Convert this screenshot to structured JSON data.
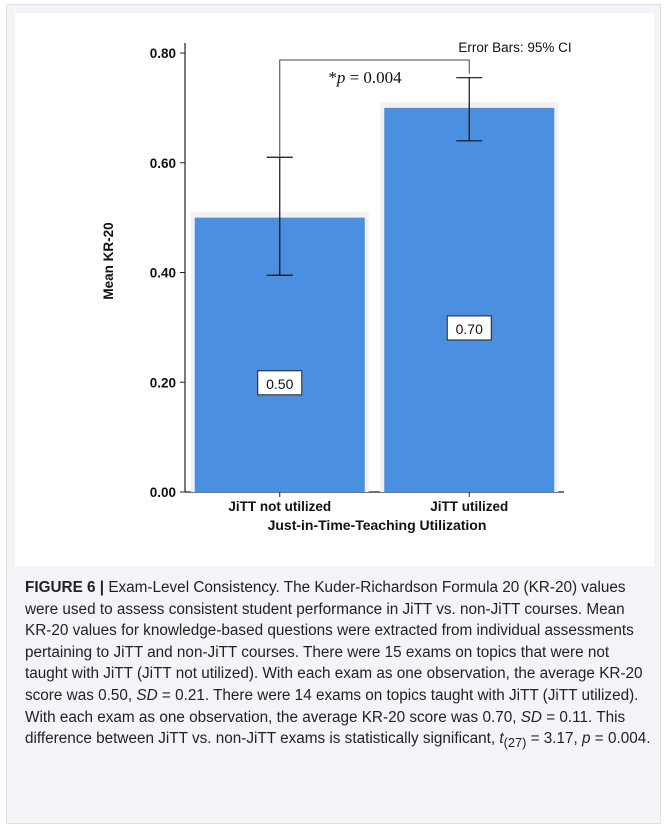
{
  "chart_data": {
    "type": "bar",
    "categories": [
      "JiTT not utilized",
      "JiTT utilized"
    ],
    "values": [
      0.5,
      0.7
    ],
    "value_labels": [
      "0.50",
      "0.70"
    ],
    "error_bars": [
      {
        "lower": 0.395,
        "upper": 0.61
      },
      {
        "lower": 0.64,
        "upper": 0.755
      }
    ],
    "error_bar_label": "Error Bars: 95% CI",
    "significance_label": "*p = 0.004",
    "xlabel": "Just-in-Time-Teaching Utilization",
    "ylabel": "Mean KR-20",
    "ylim": [
      0,
      0.8
    ],
    "yticks": [
      "0.00",
      "0.20",
      "0.40",
      "0.60",
      "0.80"
    ],
    "bar_color": "#4a8fe0",
    "bar_shadow_color": "#f1f1f1",
    "grid": false
  },
  "caption": {
    "figure_label": "FIGURE 6 |",
    "p1": " Exam-Level Consistency. The Kuder-Richardson Formula 20 (KR-20) values were used to assess consistent student performance in JiTT vs. non-JiTT courses. Mean KR-20 values for knowledge-based questions were extracted from individual assessments pertaining to JiTT and non-JiTT courses. There were 15 exams on topics that were not taught with JiTT (JiTT not utilized). With each exam as one observation, the average KR-20 score was 0.50, ",
    "sd_label": "SD",
    "p2": " = 0.21. There were 14 exams on topics taught with JiTT (JiTT utilized). With each exam as one observation, the average KR-20 score was 0.70, ",
    "p3": " = 0.11. This difference between JiTT vs. non-JiTT exams is statistically significant, ",
    "t_label": "t",
    "t_sub": "(27)",
    "p4": " = 3.17, ",
    "p_label": "p",
    "p5": " = 0.004."
  }
}
